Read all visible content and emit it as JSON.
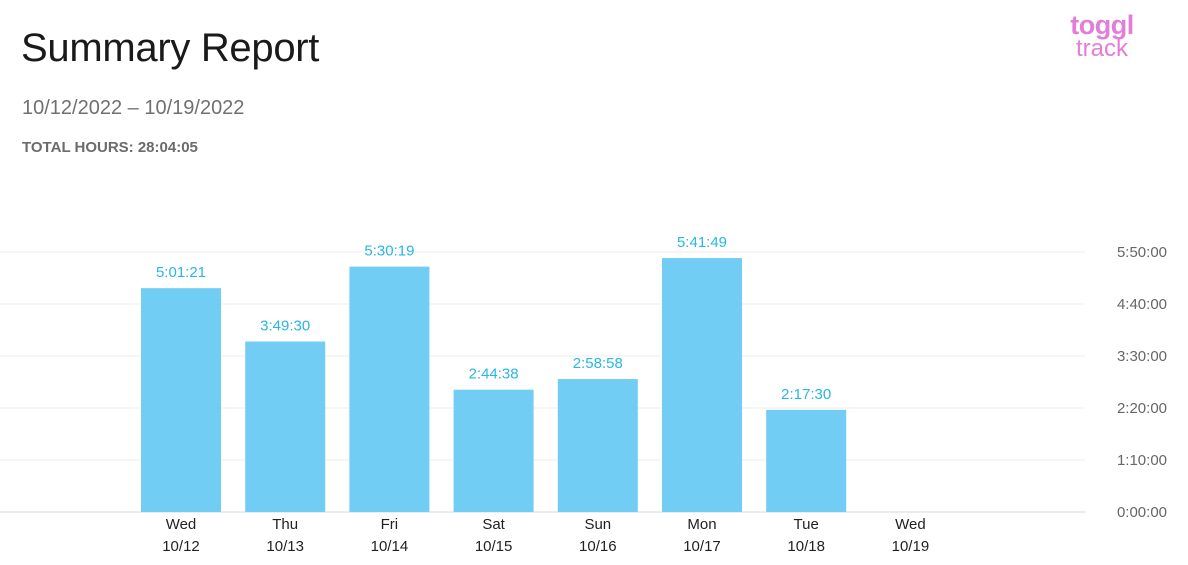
{
  "report": {
    "title": "Summary Report",
    "date_range": "10/12/2022 – 10/19/2022",
    "total_hours": "TOTAL HOURS: 28:04:05"
  },
  "brand": {
    "logo_line1": "toggl",
    "logo_line2": "track",
    "logo_color": "#e37ed8"
  },
  "chart_data": {
    "type": "bar",
    "categories": [
      {
        "day": "Wed",
        "date": "10/12"
      },
      {
        "day": "Thu",
        "date": "10/13"
      },
      {
        "day": "Fri",
        "date": "10/14"
      },
      {
        "day": "Sat",
        "date": "10/15"
      },
      {
        "day": "Sun",
        "date": "10/16"
      },
      {
        "day": "Mon",
        "date": "10/17"
      },
      {
        "day": "Tue",
        "date": "10/18"
      },
      {
        "day": "Wed",
        "date": "10/19"
      }
    ],
    "values": [
      5.0225,
      3.825,
      5.5053,
      2.7439,
      2.9828,
      5.6969,
      2.2917,
      0
    ],
    "data_labels": [
      "5:01:21",
      "3:49:30",
      "5:30:19",
      "2:44:38",
      "2:58:58",
      "5:41:49",
      "2:17:30",
      ""
    ],
    "y_ticks": [
      {
        "value": 0,
        "label": "0:00:00"
      },
      {
        "value": 1.1667,
        "label": "1:10:00"
      },
      {
        "value": 2.3333,
        "label": "2:20:00"
      },
      {
        "value": 3.5,
        "label": "3:30:00"
      },
      {
        "value": 4.6667,
        "label": "4:40:00"
      },
      {
        "value": 5.8333,
        "label": "5:50:00"
      }
    ],
    "ylim": [
      0,
      5.8333
    ],
    "y_axis_position": "right",
    "grid": true,
    "bar_color": "#72cdf4",
    "label_color": "#29b6e5"
  }
}
